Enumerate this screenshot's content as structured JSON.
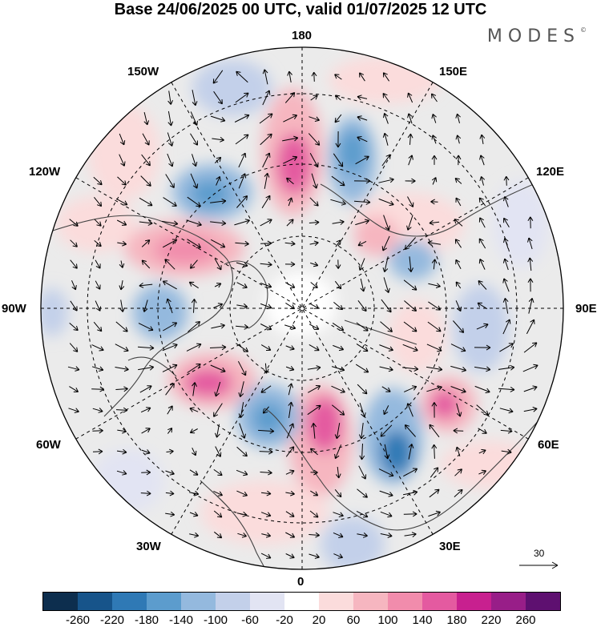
{
  "title": "Base 24/06/2025 00 UTC, valid 01/07/2025 12 UTC",
  "brand": "MODES",
  "longitude_labels": {
    "n180": "180",
    "n150e": "150E",
    "n120e": "120E",
    "n90e": "90E",
    "n60e": "60E",
    "n30e": "30E",
    "n0": "0",
    "n30w": "30W",
    "n60w": "60W",
    "n90w": "90W",
    "n120w": "120W",
    "n150w": "150W"
  },
  "reference_vector": "30",
  "colorbar": {
    "colors": [
      "#0d2e4e",
      "#17548a",
      "#2f79b5",
      "#5c9ccd",
      "#94b9de",
      "#c3d0ea",
      "#e2e4f3",
      "#ffffff",
      "#fbdcdc",
      "#f6b6c0",
      "#f18cac",
      "#e45aa0",
      "#c8208f",
      "#981e88",
      "#5e1070"
    ],
    "tick_labels": [
      "-260",
      "-220",
      "-180",
      "-140",
      "-100",
      "-60",
      "-20",
      "20",
      "60",
      "100",
      "140",
      "180",
      "220",
      "260"
    ]
  },
  "map": {
    "projection": "north-polar-stereographic",
    "background_field_colors": {
      "neutral": "#ebebeb",
      "light_pos": "#fbdcdc",
      "mid_pos": "#f6b6c0",
      "strong_pos": "#f18cac",
      "peak_pos": "#e45aa0",
      "light_neg": "#e2e4f3",
      "mid_neg": "#c3d0ea",
      "strong_neg": "#94b9de",
      "peak_neg": "#5c9ccd"
    }
  }
}
